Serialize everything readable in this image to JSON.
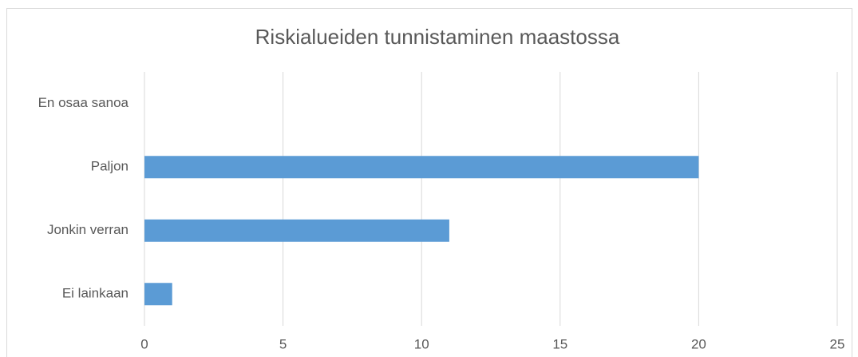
{
  "chart_data": {
    "type": "bar",
    "orientation": "horizontal",
    "title": "Riskialueiden tunnistaminen maastossa",
    "categories": [
      "En osaa sanoa",
      "Paljon",
      "Jonkin verran",
      "Ei lainkaan"
    ],
    "values": [
      0,
      20,
      11,
      1
    ],
    "color": "#5b9bd5",
    "xlim": [
      0,
      25
    ],
    "xticks": [
      0,
      5,
      10,
      15,
      20,
      25
    ],
    "grid": true
  }
}
